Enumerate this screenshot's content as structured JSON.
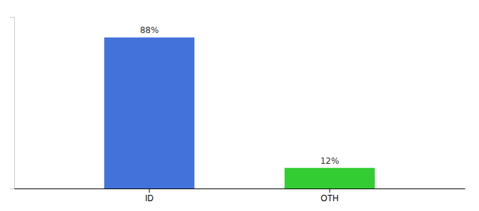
{
  "chart_data": {
    "type": "bar",
    "categories": [
      "ID",
      "OTH"
    ],
    "values": [
      88,
      12
    ],
    "colors": [
      "#4472DB",
      "#33CC33"
    ],
    "value_labels": [
      "88%",
      "12%"
    ],
    "data_labels": true,
    "ylim": [
      0,
      100
    ],
    "tick_labels": "x",
    "grid": false
  }
}
